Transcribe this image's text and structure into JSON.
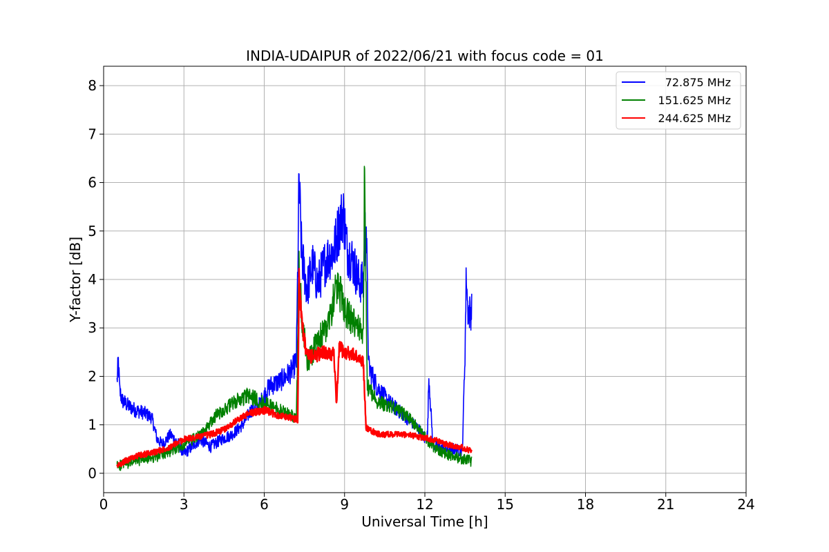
{
  "chart_data": {
    "type": "line",
    "title": "INDIA-UDAIPUR of 2022/06/21 with focus code = 01",
    "xlabel": "Universal Time [h]",
    "ylabel": "Y-factor [dB]",
    "xlim": [
      0,
      24
    ],
    "ylim": [
      -0.4,
      8.4
    ],
    "xticks": [
      "0",
      "3",
      "6",
      "9",
      "12",
      "15",
      "18",
      "21",
      "24"
    ],
    "yticks": [
      "0",
      "1",
      "2",
      "3",
      "4",
      "5",
      "6",
      "7",
      "8"
    ],
    "grid": true,
    "legend_position": "top-right",
    "series": [
      {
        "name": "72.875 MHz",
        "color": "#0000ff",
        "x": [
          0.5,
          0.55,
          0.6,
          0.7,
          0.9,
          1.2,
          1.5,
          1.8,
          2.0,
          2.2,
          2.5,
          2.8,
          3.0,
          3.3,
          3.6,
          4.0,
          4.4,
          4.8,
          5.2,
          5.5,
          5.8,
          6.2,
          6.6,
          7.0,
          7.2,
          7.3,
          7.4,
          7.6,
          7.8,
          8.0,
          8.3,
          8.6,
          8.8,
          8.95,
          9.1,
          9.3,
          9.5,
          9.7,
          9.8,
          9.9,
          10.2,
          10.6,
          11.0,
          11.4,
          11.8,
          12.0,
          12.1,
          12.15,
          12.3,
          12.7,
          13.1,
          13.4,
          13.5,
          13.55,
          13.6,
          13.7,
          13.75
        ],
        "y": [
          1.9,
          2.3,
          1.7,
          1.5,
          1.4,
          1.3,
          1.25,
          1.15,
          0.7,
          0.6,
          0.8,
          0.6,
          0.4,
          0.55,
          0.7,
          0.55,
          0.7,
          0.8,
          1.0,
          1.3,
          1.4,
          1.8,
          1.9,
          2.1,
          2.3,
          6.0,
          4.5,
          3.8,
          4.3,
          3.9,
          4.4,
          4.6,
          5.1,
          5.4,
          4.6,
          4.4,
          4.0,
          3.9,
          5.5,
          2.2,
          1.8,
          1.5,
          1.3,
          1.1,
          0.9,
          0.7,
          0.8,
          2.0,
          0.6,
          0.5,
          0.5,
          0.45,
          2.5,
          4.2,
          3.4,
          3.3,
          3.4
        ]
      },
      {
        "name": "151.625 MHz",
        "color": "#008000",
        "x": [
          0.5,
          0.8,
          1.2,
          1.6,
          2.0,
          2.5,
          3.0,
          3.5,
          3.8,
          4.2,
          4.6,
          5.0,
          5.4,
          5.8,
          6.2,
          6.6,
          7.0,
          7.2,
          7.3,
          7.4,
          7.6,
          7.9,
          8.2,
          8.5,
          8.7,
          8.9,
          9.1,
          9.3,
          9.5,
          9.7,
          9.75,
          9.85,
          10.2,
          10.6,
          11.0,
          11.4,
          11.8,
          12.2,
          12.6,
          13.0,
          13.4,
          13.75
        ],
        "y": [
          0.15,
          0.2,
          0.25,
          0.3,
          0.35,
          0.45,
          0.6,
          0.75,
          0.9,
          1.2,
          1.35,
          1.5,
          1.6,
          1.5,
          1.4,
          1.3,
          1.2,
          1.1,
          4.3,
          3.2,
          2.3,
          2.6,
          2.9,
          3.3,
          3.9,
          3.6,
          3.3,
          3.1,
          3.0,
          2.9,
          6.5,
          1.8,
          1.5,
          1.4,
          1.3,
          1.15,
          0.9,
          0.6,
          0.45,
          0.35,
          0.3,
          0.25
        ]
      },
      {
        "name": "244.625 MHz",
        "color": "#ff0000",
        "x": [
          0.5,
          0.8,
          1.2,
          1.6,
          2.0,
          2.5,
          3.0,
          3.5,
          4.0,
          4.5,
          5.0,
          5.5,
          6.0,
          6.5,
          7.0,
          7.25,
          7.3,
          7.4,
          7.6,
          8.0,
          8.4,
          8.6,
          8.7,
          8.8,
          9.0,
          9.3,
          9.6,
          9.7,
          9.8,
          9.9,
          10.3,
          10.8,
          11.3,
          11.8,
          12.3,
          12.8,
          13.3,
          13.75
        ],
        "y": [
          0.15,
          0.25,
          0.35,
          0.4,
          0.45,
          0.55,
          0.7,
          0.75,
          0.8,
          0.9,
          1.1,
          1.25,
          1.3,
          1.2,
          1.15,
          1.1,
          4.0,
          3.1,
          2.4,
          2.45,
          2.5,
          2.45,
          1.4,
          2.6,
          2.5,
          2.45,
          2.35,
          2.3,
          0.95,
          0.9,
          0.8,
          0.8,
          0.8,
          0.75,
          0.7,
          0.6,
          0.55,
          0.45
        ]
      }
    ]
  }
}
